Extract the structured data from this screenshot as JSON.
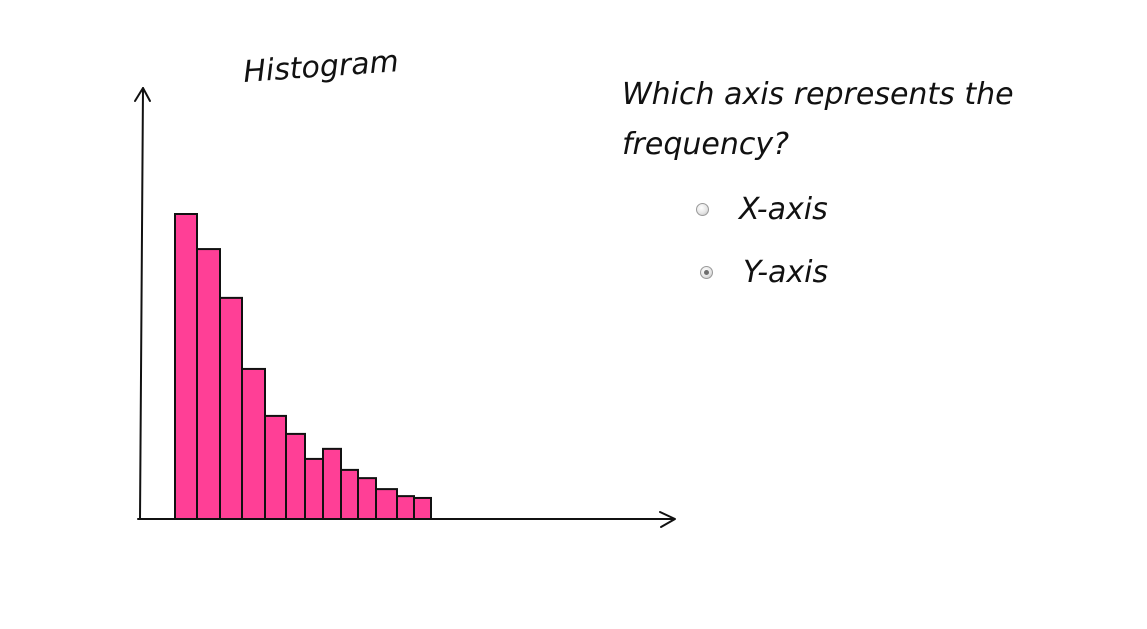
{
  "chart_data": {
    "type": "bar",
    "title": "Histogram",
    "values": [
      100,
      88.5,
      72.5,
      49.2,
      33.8,
      27.9,
      19.7,
      23,
      16.1,
      13.4,
      9.8,
      7.5,
      6.9
    ],
    "ylim": [
      0,
      110
    ],
    "grid": false,
    "bar_color": "#ff3f96",
    "bar_stroke": "#111111"
  },
  "quiz": {
    "question": "Which axis represents the frequency?",
    "options": [
      {
        "label": "X-axis",
        "selected": false
      },
      {
        "label": "Y-axis",
        "selected": true
      }
    ]
  }
}
